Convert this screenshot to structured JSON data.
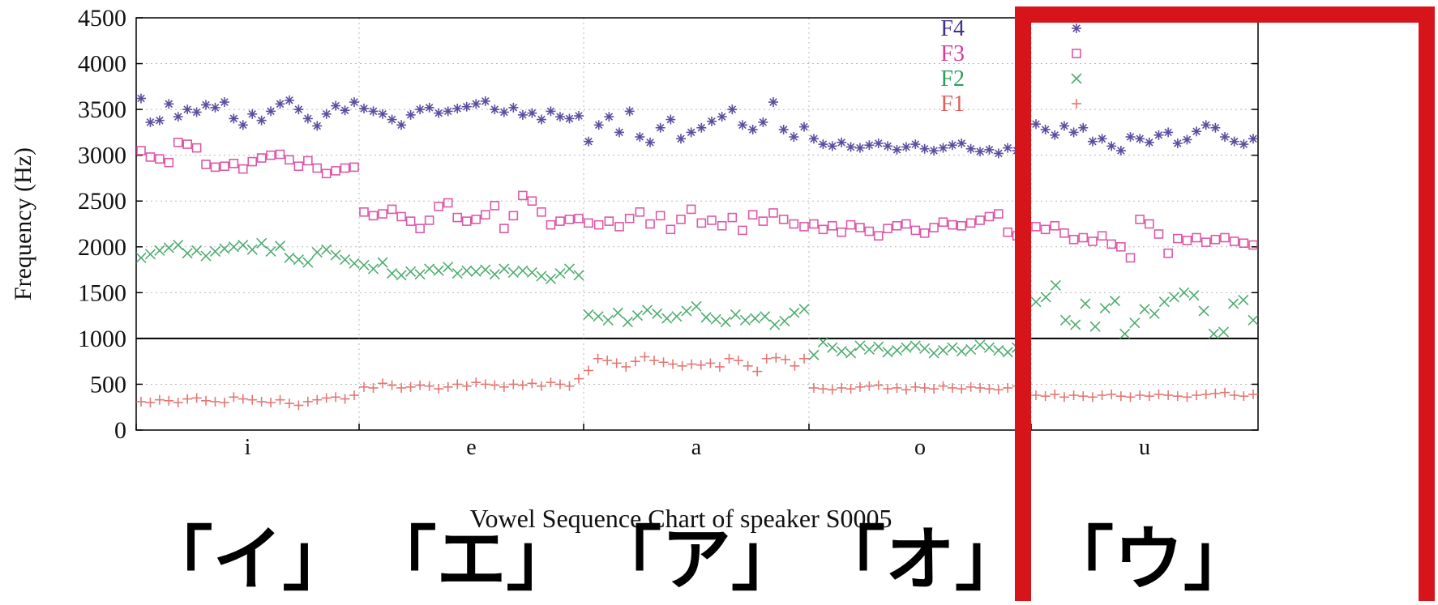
{
  "chart_data": {
    "type": "scatter",
    "title": "Vowel Sequence Chart of speaker S0005",
    "ylabel": "Frequency (Hz)",
    "xlabel": "",
    "ylim": [
      0,
      4500
    ],
    "yticks": [
      0,
      500,
      1000,
      1500,
      2000,
      2500,
      3000,
      3500,
      4000,
      4500
    ],
    "grid": true,
    "legend_position": "top-right",
    "categories": [
      "i",
      "e",
      "a",
      "o",
      "u"
    ],
    "category_annotations": [
      "「イ」",
      "「エ」",
      "「ア」",
      "「オ」",
      "「ウ」"
    ],
    "highlighted_category": "u",
    "highlight_color": "#d8141b",
    "series": [
      {
        "name": "F4",
        "marker": "asterisk",
        "color": "#3f2f8f",
        "segments": [
          [
            3620,
            3360,
            3380,
            3560,
            3420,
            3500,
            3470,
            3550,
            3520,
            3580,
            3400,
            3330,
            3450,
            3380,
            3480,
            3560,
            3600,
            3500,
            3400,
            3320,
            3450,
            3540,
            3490,
            3580
          ],
          [
            3510,
            3480,
            3450,
            3390,
            3330,
            3440,
            3500,
            3520,
            3460,
            3480,
            3510,
            3530,
            3560,
            3590,
            3500,
            3470,
            3520,
            3440,
            3460,
            3390,
            3480,
            3420,
            3400,
            3430
          ],
          [
            3150,
            3330,
            3420,
            3250,
            3480,
            3200,
            3140,
            3300,
            3390,
            3180,
            3250,
            3300,
            3370,
            3420,
            3500,
            3330,
            3280,
            3360,
            3580,
            3280,
            3200,
            3310
          ],
          [
            3180,
            3120,
            3100,
            3140,
            3090,
            3080,
            3110,
            3130,
            3100,
            3060,
            3090,
            3120,
            3070,
            3050,
            3080,
            3110,
            3130,
            3070,
            3040,
            3060,
            3020,
            3080,
            3050,
            3060
          ],
          [
            3340,
            3280,
            3220,
            3320,
            3250,
            3300,
            3150,
            3180,
            3100,
            3050,
            3200,
            3180,
            3140,
            3220,
            3250,
            3130,
            3170,
            3260,
            3330,
            3300,
            3200,
            3150,
            3120,
            3180
          ]
        ]
      },
      {
        "name": "F3",
        "marker": "square",
        "color": "#d63c9a",
        "segments": [
          [
            3050,
            2980,
            2960,
            2920,
            3140,
            3120,
            3080,
            2900,
            2870,
            2880,
            2910,
            2850,
            2930,
            2970,
            3000,
            3010,
            2950,
            2880,
            2940,
            2860,
            2800,
            2830,
            2860,
            2870
          ],
          [
            2380,
            2340,
            2360,
            2410,
            2330,
            2280,
            2200,
            2290,
            2440,
            2480,
            2320,
            2280,
            2300,
            2350,
            2450,
            2200,
            2340,
            2560,
            2500,
            2380,
            2240,
            2280,
            2300,
            2310
          ],
          [
            2260,
            2240,
            2280,
            2220,
            2310,
            2380,
            2250,
            2340,
            2190,
            2300,
            2410,
            2260,
            2290,
            2230,
            2320,
            2180,
            2350,
            2280,
            2370,
            2300,
            2250,
            2220
          ],
          [
            2250,
            2190,
            2230,
            2160,
            2240,
            2210,
            2170,
            2120,
            2200,
            2230,
            2250,
            2180,
            2150,
            2210,
            2270,
            2240,
            2230,
            2260,
            2290,
            2330,
            2360,
            2160,
            2120,
            2140
          ],
          [
            2220,
            2190,
            2230,
            2150,
            2080,
            2100,
            2060,
            2120,
            2030,
            2000,
            1880,
            2300,
            2250,
            2140,
            1930,
            2090,
            2070,
            2100,
            2050,
            2080,
            2100,
            2060,
            2040,
            2020
          ]
        ]
      },
      {
        "name": "F2",
        "marker": "x",
        "color": "#2f9e57",
        "segments": [
          [
            1880,
            1920,
            1960,
            1990,
            2020,
            1930,
            1960,
            1900,
            1950,
            1980,
            2000,
            2020,
            1970,
            2040,
            1950,
            2010,
            1880,
            1860,
            1830,
            1940,
            1970,
            1910,
            1860,
            1820
          ],
          [
            1800,
            1760,
            1830,
            1710,
            1690,
            1730,
            1700,
            1760,
            1740,
            1780,
            1710,
            1740,
            1730,
            1750,
            1700,
            1760,
            1720,
            1740,
            1720,
            1680,
            1650,
            1710,
            1760,
            1690
          ],
          [
            1260,
            1240,
            1200,
            1280,
            1180,
            1250,
            1310,
            1270,
            1220,
            1240,
            1300,
            1350,
            1230,
            1210,
            1180,
            1260,
            1200,
            1220,
            1240,
            1150,
            1190,
            1280,
            1320
          ],
          [
            820,
            960,
            900,
            860,
            840,
            920,
            880,
            910,
            850,
            870,
            900,
            920,
            890,
            840,
            870,
            900,
            860,
            880,
            930,
            900,
            870,
            850,
            900,
            880
          ],
          [
            1400,
            1450,
            1580,
            1200,
            1150,
            1380,
            1130,
            1330,
            1410,
            1050,
            1170,
            1320,
            1270,
            1400,
            1450,
            1500,
            1470,
            1300,
            1050,
            1070,
            1380,
            1420,
            1200
          ]
        ]
      },
      {
        "name": "F1",
        "marker": "plus",
        "color": "#e0605a",
        "segments": [
          [
            310,
            300,
            330,
            320,
            300,
            340,
            350,
            320,
            310,
            300,
            360,
            340,
            330,
            310,
            300,
            330,
            290,
            270,
            310,
            330,
            350,
            360,
            340,
            380
          ],
          [
            470,
            460,
            510,
            490,
            460,
            470,
            490,
            480,
            450,
            470,
            500,
            480,
            520,
            500,
            490,
            470,
            500,
            490,
            510,
            480,
            520,
            500,
            480,
            560
          ],
          [
            650,
            780,
            760,
            730,
            690,
            750,
            800,
            760,
            740,
            720,
            700,
            720,
            710,
            730,
            690,
            780,
            760,
            700,
            640,
            780,
            790,
            770,
            700,
            780
          ],
          [
            460,
            450,
            440,
            460,
            450,
            470,
            480,
            490,
            450,
            460,
            440,
            470,
            460,
            450,
            480,
            460,
            450,
            470,
            460,
            450,
            440,
            460,
            480,
            470
          ],
          [
            380,
            370,
            390,
            360,
            380,
            370,
            360,
            380,
            390,
            370,
            360,
            380,
            370,
            390,
            380,
            370,
            360,
            380,
            390,
            400,
            410,
            380,
            370,
            390
          ]
        ]
      }
    ]
  }
}
